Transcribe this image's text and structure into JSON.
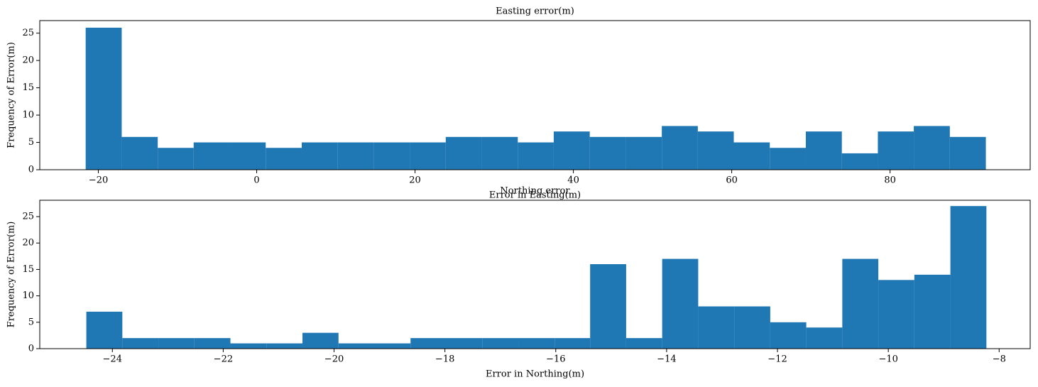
{
  "chart_data": [
    {
      "type": "histogram",
      "title": "Easting error(m)",
      "x_label": "Error in Easting(m)",
      "y_label": "Frequency of Error(m)",
      "color": "#1f77b4",
      "bins": [
        -21.6,
        -17.05,
        -12.5,
        -7.96,
        -3.41,
        1.14,
        5.69,
        10.24,
        14.78,
        19.33,
        23.88,
        28.43,
        32.98,
        37.52,
        42.07,
        46.62,
        51.17,
        55.72,
        60.26,
        64.81,
        69.36,
        73.91,
        78.46,
        83.0,
        87.55,
        92.1
      ],
      "values": [
        26,
        6,
        4,
        5,
        5,
        4,
        5,
        5,
        5,
        5,
        6,
        6,
        5,
        7,
        6,
        6,
        8,
        7,
        5,
        4,
        7,
        3,
        7,
        8,
        6
      ],
      "xlim": [
        -27.4,
        97.7
      ],
      "ylim": [
        0,
        27.3
      ],
      "xticks": [
        {
          "value": -20,
          "label": "−20"
        },
        0,
        20,
        40,
        60,
        80
      ],
      "yticks": [
        0,
        5,
        10,
        15,
        20,
        25
      ]
    },
    {
      "type": "histogram",
      "title": "Northing error",
      "x_label": "Error in Northing(m)",
      "y_label": "Frequency of Error(m)",
      "color": "#1f77b4",
      "bins": [
        -24.47,
        -23.82,
        -23.17,
        -22.52,
        -21.87,
        -21.22,
        -20.57,
        -19.92,
        -19.27,
        -18.62,
        -17.97,
        -17.32,
        -16.67,
        -16.02,
        -15.38,
        -14.73,
        -14.08,
        -13.43,
        -12.78,
        -12.13,
        -11.48,
        -10.83,
        -10.18,
        -9.53,
        -8.88,
        -8.23
      ],
      "values": [
        7,
        2,
        2,
        2,
        1,
        1,
        3,
        1,
        1,
        2,
        2,
        2,
        2,
        2,
        16,
        2,
        17,
        8,
        8,
        5,
        4,
        17,
        13,
        14,
        27
      ],
      "xlim": [
        -25.31,
        -7.44
      ],
      "ylim": [
        0,
        28.1
      ],
      "xticks": [
        {
          "value": -24,
          "label": "−24"
        },
        {
          "value": -22,
          "label": "−22"
        },
        {
          "value": -20,
          "label": "−20"
        },
        {
          "value": -18,
          "label": "−18"
        },
        {
          "value": -16,
          "label": "−16"
        },
        {
          "value": -14,
          "label": "−14"
        },
        {
          "value": -12,
          "label": "−12"
        },
        {
          "value": -10,
          "label": "−10"
        },
        {
          "value": -8,
          "label": "−8"
        }
      ],
      "yticks": [
        0,
        5,
        10,
        15,
        20,
        25
      ]
    }
  ]
}
